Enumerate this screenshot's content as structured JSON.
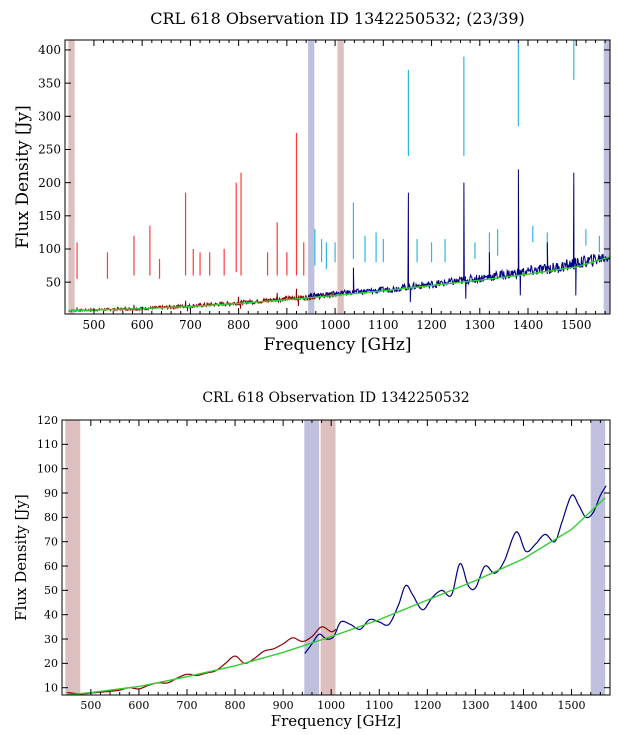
{
  "chart_data": [
    {
      "type": "line",
      "title": "CRL 618 Observation ID 1342250532; (23/39)",
      "xlabel": "Frequency [GHz]",
      "ylabel": "Flux Density [Jy]",
      "xlim": [
        440,
        1570
      ],
      "ylim": [
        2,
        415
      ],
      "xticks": [
        500,
        600,
        700,
        800,
        900,
        1000,
        1100,
        1200,
        1300,
        1400,
        1500
      ],
      "yticks": [
        50,
        100,
        150,
        200,
        250,
        300,
        350,
        400
      ],
      "grid": false,
      "colors": {
        "slw_spectrum": "#8b0000",
        "ssw_spectrum": "#000080",
        "slw_lines": "#ff3b3b",
        "ssw_lines": "#33b5e5",
        "continuum": "#33cc33",
        "slw_band": "#d8b4b4",
        "ssw_band": "#b4b4d8"
      },
      "bands": [
        {
          "series": "SLW",
          "x": [
            447,
            460
          ]
        },
        {
          "series": "SSW",
          "x": [
            944,
            957
          ]
        },
        {
          "series": "SLW",
          "x": [
            1005,
            1018
          ]
        },
        {
          "series": "SSW",
          "x": [
            1557,
            1570
          ]
        }
      ],
      "line_markers": {
        "SLW": [
          {
            "x": 465,
            "y": [
              55,
              110
            ]
          },
          {
            "x": 528,
            "y": [
              55,
              95
            ]
          },
          {
            "x": 583,
            "y": [
              60,
              120
            ]
          },
          {
            "x": 616,
            "y": [
              60,
              135
            ]
          },
          {
            "x": 636,
            "y": [
              55,
              85
            ]
          },
          {
            "x": 690,
            "y": [
              60,
              185
            ]
          },
          {
            "x": 706,
            "y": [
              60,
              100
            ]
          },
          {
            "x": 720,
            "y": [
              60,
              95
            ]
          },
          {
            "x": 740,
            "y": [
              60,
              95
            ]
          },
          {
            "x": 770,
            "y": [
              60,
              100
            ]
          },
          {
            "x": 795,
            "y": [
              65,
              200
            ]
          },
          {
            "x": 805,
            "y": [
              60,
              215
            ]
          },
          {
            "x": 860,
            "y": [
              60,
              95
            ]
          },
          {
            "x": 880,
            "y": [
              60,
              140
            ]
          },
          {
            "x": 900,
            "y": [
              60,
              95
            ]
          },
          {
            "x": 920,
            "y": [
              60,
              275
            ]
          },
          {
            "x": 935,
            "y": [
              60,
              110
            ]
          }
        ],
        "SSW": [
          {
            "x": 958,
            "y": [
              75,
              130
            ]
          },
          {
            "x": 972,
            "y": [
              80,
              115
            ]
          },
          {
            "x": 982,
            "y": [
              70,
              110
            ]
          },
          {
            "x": 1000,
            "y": [
              80,
              110
            ]
          },
          {
            "x": 1038,
            "y": [
              85,
              170
            ]
          },
          {
            "x": 1062,
            "y": [
              80,
              120
            ]
          },
          {
            "x": 1085,
            "y": [
              80,
              125
            ]
          },
          {
            "x": 1100,
            "y": [
              80,
              115
            ]
          },
          {
            "x": 1152,
            "y": [
              240,
              370
            ]
          },
          {
            "x": 1170,
            "y": [
              80,
              115
            ]
          },
          {
            "x": 1200,
            "y": [
              80,
              110
            ]
          },
          {
            "x": 1228,
            "y": [
              80,
              115
            ]
          },
          {
            "x": 1267,
            "y": [
              240,
              390
            ]
          },
          {
            "x": 1290,
            "y": [
              85,
              110
            ]
          },
          {
            "x": 1320,
            "y": [
              85,
              125
            ]
          },
          {
            "x": 1337,
            "y": [
              90,
              130
            ]
          },
          {
            "x": 1380,
            "y": [
              285,
              415
            ]
          },
          {
            "x": 1410,
            "y": [
              110,
              135
            ]
          },
          {
            "x": 1440,
            "y": [
              95,
              125
            ]
          },
          {
            "x": 1495,
            "y": [
              355,
              415
            ]
          },
          {
            "x": 1520,
            "y": [
              105,
              130
            ]
          },
          {
            "x": 1548,
            "y": [
              95,
              120
            ]
          }
        ]
      },
      "series": [
        {
          "name": "SLW",
          "x": [
            447,
            470,
            500,
            530,
            560,
            590,
            620,
            650,
            680,
            710,
            740,
            770,
            800,
            830,
            860,
            890,
            920,
            950,
            980,
            1005
          ],
          "y": [
            7,
            7.5,
            8,
            9,
            9.5,
            10,
            11,
            12,
            13.5,
            14.5,
            16,
            17,
            19,
            20.5,
            22.5,
            24.5,
            26,
            27.5,
            29.5,
            31
          ],
          "peaks": [
            {
              "x": 465,
              "y": 12
            },
            {
              "x": 583,
              "y": 16
            },
            {
              "x": 690,
              "y": 22
            },
            {
              "x": 800,
              "y": 28
            },
            {
              "x": 880,
              "y": 34
            },
            {
              "x": 920,
              "y": 40
            }
          ],
          "dips": [
            {
              "x": 690,
              "y": 6
            },
            {
              "x": 800,
              "y": 10
            },
            {
              "x": 920,
              "y": 14
            }
          ]
        },
        {
          "name": "SSW",
          "x": [
            944,
            980,
            1020,
            1060,
            1100,
            1140,
            1180,
            1220,
            1260,
            1300,
            1340,
            1380,
            1420,
            1460,
            1500,
            1540,
            1570
          ],
          "y": [
            30,
            32,
            34,
            36,
            38,
            42,
            45,
            48,
            52,
            56,
            60,
            64,
            68,
            72,
            78,
            84,
            90
          ],
          "peaks": [
            {
              "x": 1038,
              "y": 72
            },
            {
              "x": 1152,
              "y": 185
            },
            {
              "x": 1267,
              "y": 200
            },
            {
              "x": 1380,
              "y": 220
            },
            {
              "x": 1495,
              "y": 215
            },
            {
              "x": 1320,
              "y": 95
            },
            {
              "x": 1440,
              "y": 110
            }
          ],
          "dips": [
            {
              "x": 1152,
              "y": 20
            },
            {
              "x": 1267,
              "y": 25
            },
            {
              "x": 1380,
              "y": 30
            },
            {
              "x": 1495,
              "y": 30
            }
          ]
        }
      ],
      "continuum": {
        "x": [
          447,
          500,
          600,
          700,
          800,
          900,
          1000,
          1100,
          1200,
          1300,
          1400,
          1500,
          1570
        ],
        "y": [
          7,
          8,
          10,
          13.5,
          18,
          23.5,
          30,
          37,
          45,
          53,
          62,
          73,
          88
        ]
      }
    },
    {
      "type": "line",
      "title": "CRL 618 Observation ID 1342250532",
      "xlabel": "Frequency [GHz]",
      "ylabel": "Flux Density [Jy]",
      "xlim": [
        440,
        1580
      ],
      "ylim": [
        7,
        120
      ],
      "xticks": [
        500,
        600,
        700,
        800,
        900,
        1000,
        1100,
        1200,
        1300,
        1400,
        1500
      ],
      "yticks": [
        10,
        20,
        30,
        40,
        50,
        60,
        70,
        80,
        90,
        100,
        110,
        120
      ],
      "grid": false,
      "colors": {
        "slw_spectrum": "#8b0000",
        "ssw_spectrum": "#000080",
        "continuum": "#33cc33",
        "slw_band": "#d8b4b4",
        "ssw_band": "#b4b4d8"
      },
      "bands": [
        {
          "series": "SLW",
          "x": [
            447,
            478
          ]
        },
        {
          "series": "SSW",
          "x": [
            944,
            975
          ]
        },
        {
          "series": "SLW",
          "x": [
            978,
            1009
          ]
        },
        {
          "series": "SSW",
          "x": [
            1540,
            1570
          ]
        }
      ],
      "series": [
        {
          "name": "SLW",
          "x": [
            450,
            480,
            510,
            540,
            560,
            580,
            600,
            620,
            640,
            660,
            680,
            700,
            720,
            740,
            760,
            780,
            800,
            820,
            840,
            860,
            880,
            900,
            920,
            940,
            960,
            980,
            1000,
            1010
          ],
          "y": [
            8,
            7.5,
            8,
            8.5,
            9,
            10,
            9.5,
            11,
            12,
            12,
            14,
            15.5,
            15,
            16,
            17,
            20,
            23,
            20,
            22,
            25,
            26,
            28,
            30.5,
            29,
            31,
            35,
            33,
            34
          ]
        },
        {
          "name": "SSW",
          "x": [
            945,
            960,
            975,
            990,
            1005,
            1020,
            1040,
            1060,
            1080,
            1100,
            1120,
            1140,
            1155,
            1170,
            1190,
            1210,
            1230,
            1250,
            1268,
            1285,
            1300,
            1320,
            1340,
            1360,
            1385,
            1405,
            1425,
            1445,
            1465,
            1480,
            1500,
            1515,
            1530,
            1545,
            1560,
            1572
          ],
          "y": [
            24,
            28,
            32,
            30,
            31,
            37,
            36,
            34,
            38,
            37,
            36,
            44,
            52,
            48,
            42,
            47,
            50,
            48,
            61,
            52,
            51,
            60,
            57,
            62,
            74,
            66,
            69,
            73,
            70,
            78,
            89,
            85,
            80,
            82,
            89,
            93
          ]
        }
      ],
      "continuum": {
        "x": [
          450,
          500,
          600,
          700,
          800,
          900,
          1000,
          1100,
          1200,
          1300,
          1400,
          1500,
          1570
        ],
        "y": [
          7,
          8,
          10.5,
          14.5,
          19,
          24.5,
          31,
          38,
          46,
          54,
          63,
          75,
          88
        ]
      }
    }
  ]
}
